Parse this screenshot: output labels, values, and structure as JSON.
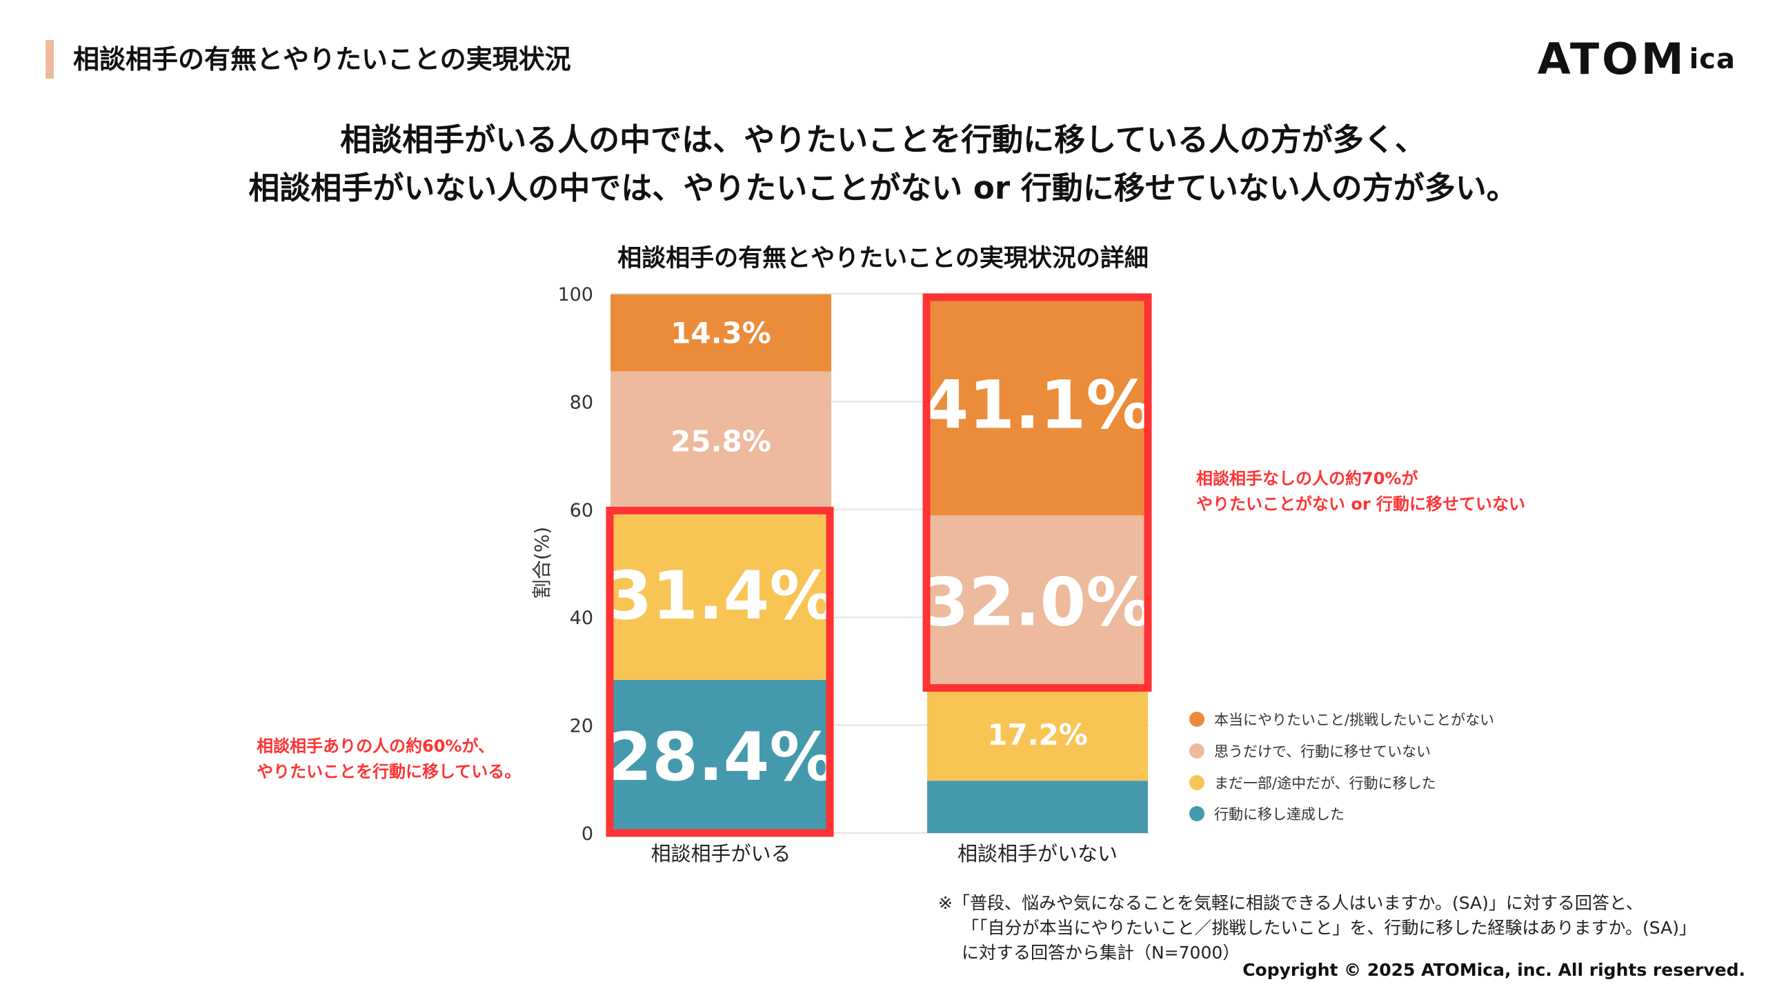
{
  "header": {
    "title": "相談相手の有無とやりたいことの実現状況",
    "logo_text": "ATOM",
    "logo_suffix": "ica"
  },
  "headline": [
    "相談相手がいる人の中では、やりたいことを行動に移している人の方が多く、",
    "相談相手がいない人の中では、やりたいことがない or 行動に移せていない人の方が多い。"
  ],
  "chart_data": {
    "type": "bar",
    "stacked": true,
    "title": "相談相手の有無とやりたいことの実現状況の詳細",
    "ylabel": "割合(%)",
    "xlabel": "",
    "ylim": [
      0,
      100
    ],
    "yticks": [
      "0",
      "20",
      "40",
      "60",
      "80",
      "100"
    ],
    "grid": true,
    "legend_position": "right",
    "categories": [
      "相談相手がいる",
      "相談相手がいない"
    ],
    "series": [
      {
        "name": "行動に移し達成した",
        "color": "#4499AC",
        "values": [
          28.4,
          9.7
        ],
        "labels": [
          "28.4%",
          ""
        ]
      },
      {
        "name": "まだ一部/途中だが、行動に移した",
        "color": "#F8C555",
        "values": [
          31.4,
          17.2
        ],
        "labels": [
          "31.4%",
          "17.2%"
        ]
      },
      {
        "name": "思うだけで、行動に移せていない",
        "color": "#EDBA9E",
        "values": [
          25.8,
          32.0
        ],
        "labels": [
          "25.8%",
          "32.0%"
        ]
      },
      {
        "name": "本当にやりたいこと/挑戦したいことがない",
        "color": "#EB8C3A",
        "values": [
          14.3,
          41.1
        ],
        "labels": [
          "14.3%",
          "41.1%"
        ]
      }
    ],
    "highlight_color": "#FF3333",
    "annotations": [
      {
        "lines": [
          "相談相手ありの人の約60%が、",
          "やりたいことを行動に移している。"
        ]
      },
      {
        "lines": [
          "相談相手なしの人の約70%が",
          "やりたいことがない or 行動に移せていない"
        ]
      }
    ]
  },
  "footnote": [
    "※「普段、悩みや気になることを気軽に相談できる人はいますか。(SA)」に対する回答と、",
    "「「自分が本当にやりたいこと／挑戦したいこと」を、行動に移した経験はありますか。(SA)」",
    "に対する回答から集計（N=7000）"
  ],
  "copyright": "Copyright © 2025 ATOMica, inc. All rights reserved."
}
